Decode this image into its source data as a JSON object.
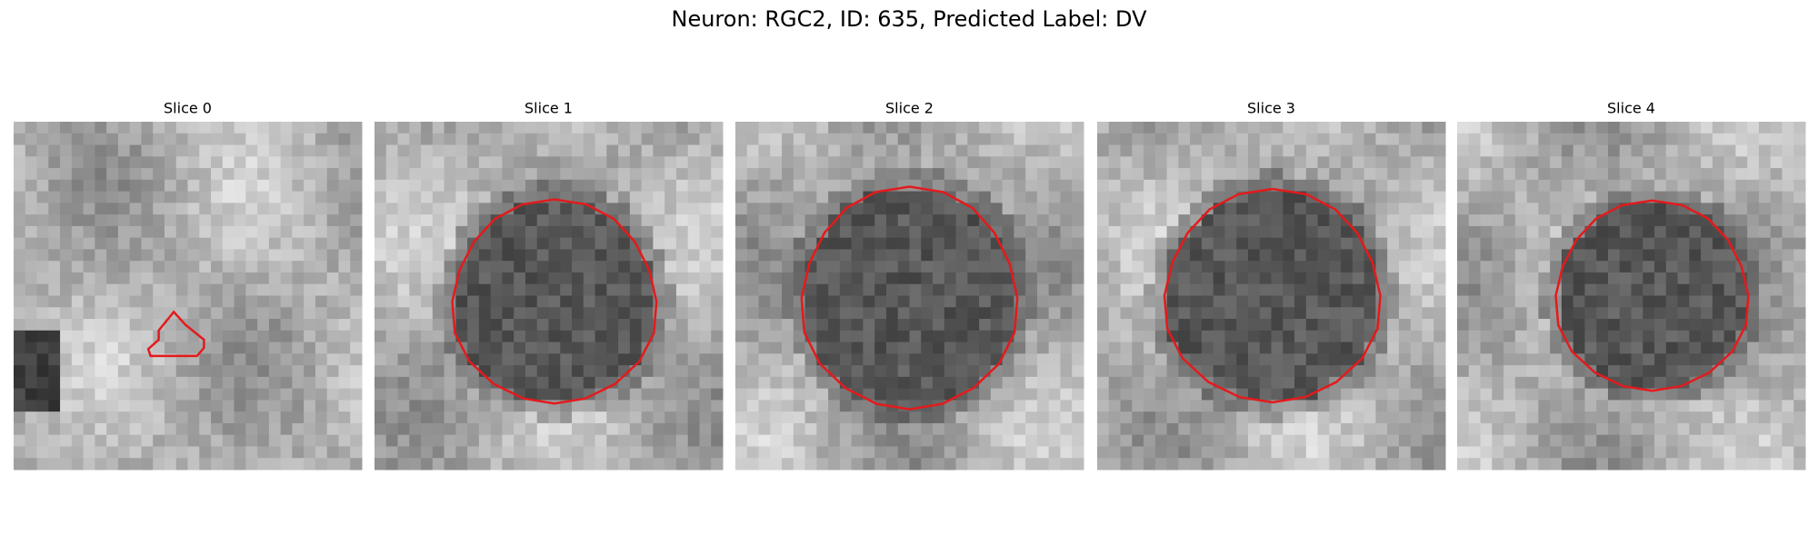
{
  "header": {
    "title": "Neuron: RGC2, ID: 635, Predicted Label: DV"
  },
  "panels": [
    {
      "title": "Slice 0"
    },
    {
      "title": "Slice 1"
    },
    {
      "title": "Slice 2"
    },
    {
      "title": "Slice 3"
    },
    {
      "title": "Slice 4"
    }
  ]
}
